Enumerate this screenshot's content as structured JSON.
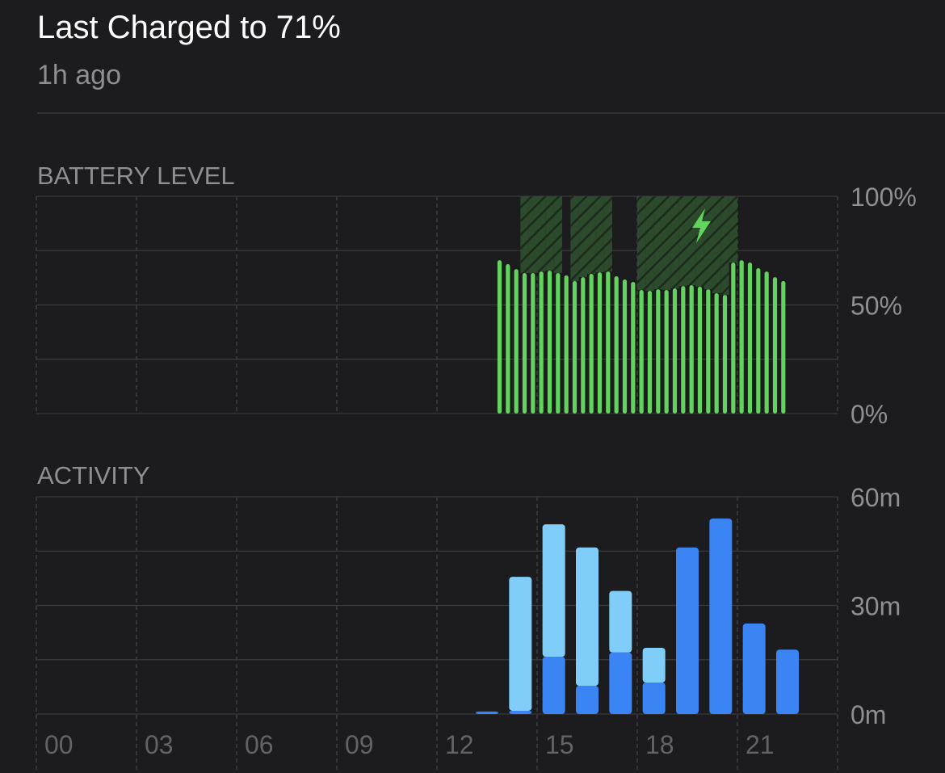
{
  "header": {
    "title": "Last Charged to 71%",
    "subtitle": "1h ago"
  },
  "chart_data": [
    {
      "type": "bar",
      "title": "BATTERY LEVEL",
      "color": "#62d35c",
      "charging_color": "#2c4a2c",
      "x": [
        13.75,
        14,
        14.25,
        14.5,
        14.75,
        15,
        15.25,
        15.5,
        15.75,
        16,
        16.25,
        16.5,
        16.75,
        17,
        17.25,
        17.5,
        17.75,
        18,
        18.25,
        18.5,
        18.75,
        19,
        19.25,
        19.5,
        19.75,
        20,
        20.25,
        20.5,
        20.75,
        21,
        21.25,
        21.5,
        21.75,
        22,
        22.25
      ],
      "values": [
        70.6,
        68.8,
        66.5,
        64.7,
        64.7,
        65.4,
        65.8,
        64.7,
        63.6,
        61,
        62.8,
        64.3,
        65,
        65.4,
        63.2,
        61.7,
        60.6,
        56.9,
        56.5,
        57.2,
        56.9,
        57.6,
        58.7,
        59.1,
        58.4,
        57.2,
        55.4,
        54.6,
        69.5,
        70.6,
        69.5,
        66.9,
        65.4,
        62.8,
        61
      ],
      "charging": [
        false,
        false,
        false,
        true,
        true,
        true,
        true,
        true,
        false,
        true,
        true,
        true,
        true,
        true,
        false,
        false,
        false,
        true,
        true,
        true,
        true,
        true,
        true,
        true,
        true,
        true,
        true,
        true,
        true,
        false,
        false,
        false,
        false,
        false,
        false
      ],
      "xlim": [
        0,
        24
      ],
      "ylim": [
        0,
        100
      ],
      "yticks": [
        {
          "value": 0,
          "label": "0%"
        },
        {
          "value": 50,
          "label": "50%"
        },
        {
          "value": 100,
          "label": "100%"
        }
      ],
      "minor_yticks": [
        25,
        75
      ]
    },
    {
      "type": "stacked_bar",
      "title": "ACTIVITY",
      "x": [
        13,
        14,
        15,
        16,
        17,
        18,
        19,
        20,
        21,
        22
      ],
      "series": [
        {
          "color": "#3b84f4",
          "values": [
            0.7,
            0.9,
            15.8,
            7.8,
            17,
            8.7,
            46,
            54,
            25,
            17.8
          ]
        },
        {
          "color": "#80cdfa",
          "values": [
            0,
            37,
            36.6,
            38.2,
            17,
            9.6,
            0,
            0,
            0,
            0
          ]
        }
      ],
      "xlim": [
        0,
        24
      ],
      "ylim": [
        0,
        60
      ],
      "xticks": [
        {
          "value": 0,
          "label": "00"
        },
        {
          "value": 3,
          "label": "03"
        },
        {
          "value": 6,
          "label": "06"
        },
        {
          "value": 9,
          "label": "09"
        },
        12,
        15,
        18,
        21,
        24
      ],
      "yticks": [
        {
          "value": 0,
          "label": "0m"
        },
        {
          "value": 30,
          "label": "30m"
        },
        {
          "value": 60,
          "label": "60m"
        }
      ],
      "minor_yticks": [
        15,
        45
      ]
    }
  ]
}
